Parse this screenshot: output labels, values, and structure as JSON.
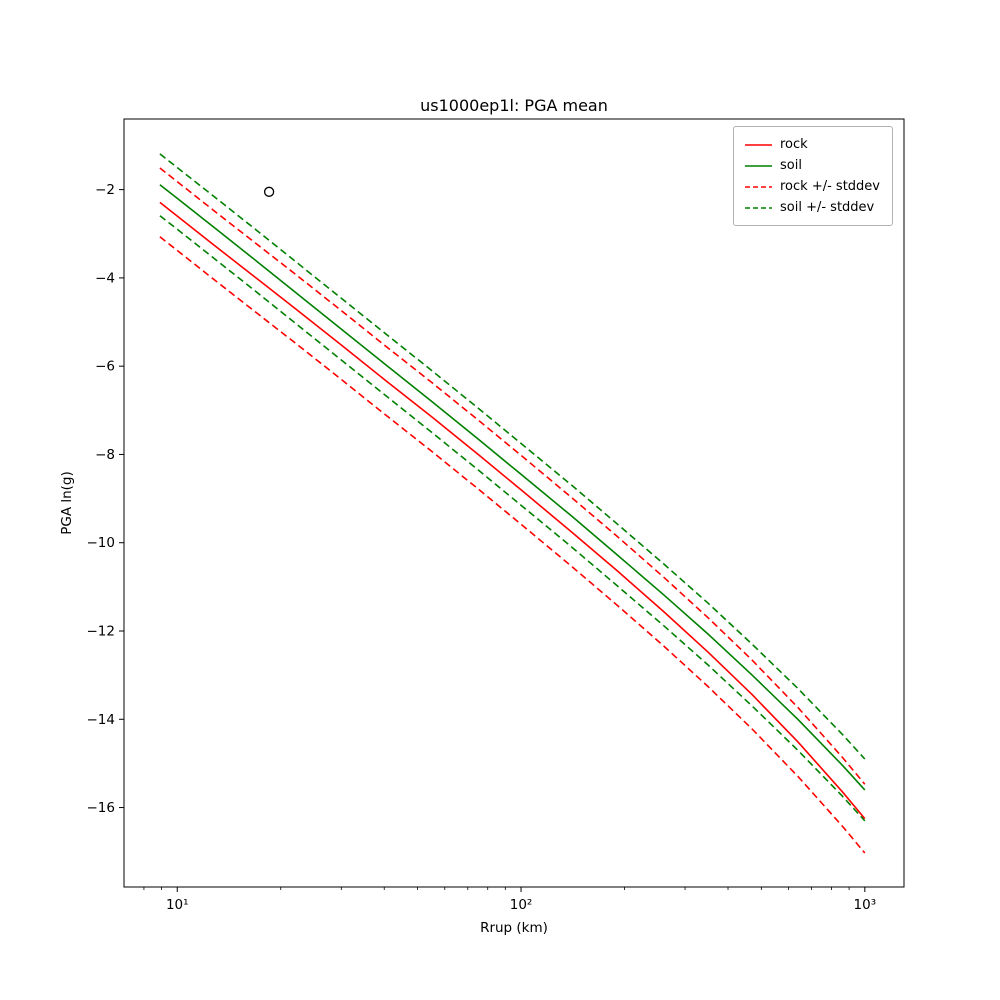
{
  "chart_data": {
    "type": "line",
    "title": "us1000ep1l: PGA mean",
    "xlabel": "Rrup (km)",
    "ylabel": "PGA ln(g)",
    "x_scale": "log",
    "xlim": [
      7.0,
      1300
    ],
    "ylim": [
      -17.8,
      -0.4
    ],
    "grid": false,
    "legend_position": "upper right",
    "x": [
      8.9,
      10,
      13,
      17,
      22,
      30,
      40,
      55,
      75,
      100,
      140,
      190,
      260,
      350,
      470,
      640,
      860,
      1000
    ],
    "series": [
      {
        "name": "rock",
        "style": "solid",
        "color": "#ff0000",
        "values": [
          -2.29,
          -2.6,
          -3.3,
          -4.01,
          -4.69,
          -5.52,
          -6.3,
          -7.15,
          -8.0,
          -8.8,
          -9.75,
          -10.63,
          -11.56,
          -12.48,
          -13.44,
          -14.52,
          -15.64,
          -16.25
        ]
      },
      {
        "name": "soil",
        "style": "solid",
        "color": "#008000",
        "values": [
          -1.89,
          -2.2,
          -2.9,
          -3.62,
          -4.32,
          -5.16,
          -5.94,
          -6.8,
          -7.65,
          -8.45,
          -9.39,
          -10.27,
          -11.18,
          -12.07,
          -13.0,
          -14.01,
          -15.04,
          -15.6
        ]
      },
      {
        "name": "rock +/- stddev",
        "style": "dashed",
        "color": "#ff0000",
        "upper": [
          -1.51,
          -1.82,
          -2.52,
          -3.23,
          -3.91,
          -4.74,
          -5.52,
          -6.37,
          -7.22,
          -8.02,
          -8.97,
          -9.85,
          -10.78,
          -11.7,
          -12.66,
          -13.74,
          -14.86,
          -15.47
        ],
        "lower": [
          -3.07,
          -3.38,
          -4.08,
          -4.79,
          -5.47,
          -6.3,
          -7.08,
          -7.93,
          -8.78,
          -9.58,
          -10.53,
          -11.41,
          -12.34,
          -13.26,
          -14.22,
          -15.3,
          -16.42,
          -17.03
        ]
      },
      {
        "name": "soil +/- stddev",
        "style": "dashed",
        "color": "#008000",
        "upper": [
          -1.19,
          -1.5,
          -2.2,
          -2.92,
          -3.62,
          -4.46,
          -5.24,
          -6.1,
          -6.95,
          -7.75,
          -8.69,
          -9.57,
          -10.48,
          -11.37,
          -12.3,
          -13.31,
          -14.34,
          -14.9
        ],
        "lower": [
          -2.59,
          -2.9,
          -3.6,
          -4.32,
          -5.02,
          -5.86,
          -6.64,
          -7.5,
          -8.35,
          -9.15,
          -10.09,
          -10.97,
          -11.88,
          -12.77,
          -13.7,
          -14.71,
          -15.74,
          -16.3
        ]
      }
    ],
    "stddev": {
      "rock": 0.78,
      "soil": 0.7
    },
    "marker": {
      "x": 18.5,
      "y": -2.05,
      "shape": "circle-open",
      "color": "#000000"
    },
    "yticks": [
      {
        "value": -2,
        "label": "−2"
      },
      {
        "value": -4,
        "label": "−4"
      },
      {
        "value": -6,
        "label": "−6"
      },
      {
        "value": -8,
        "label": "−8"
      },
      {
        "value": -10,
        "label": "−10"
      },
      {
        "value": -12,
        "label": "−12"
      },
      {
        "value": -14,
        "label": "−14"
      },
      {
        "value": -16,
        "label": "−16"
      }
    ],
    "xticks": [
      {
        "value": 10,
        "label": "10¹"
      },
      {
        "value": 100,
        "label": "10²"
      },
      {
        "value": 1000,
        "label": "10³"
      }
    ]
  }
}
